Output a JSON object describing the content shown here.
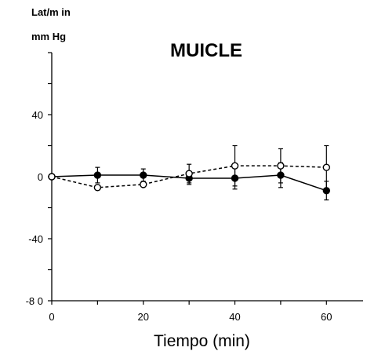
{
  "chart_data": {
    "type": "line",
    "title": "MUICLE",
    "ylabel_lines": [
      "Lat/m in",
      "mm  Hg"
    ],
    "xlabel": "Tiempo (min)",
    "xlim": [
      0,
      68
    ],
    "ylim": [
      -80,
      80
    ],
    "xticks": [
      {
        "value": 0,
        "label": "0"
      },
      {
        "value": 20,
        "label": "20"
      },
      {
        "value": 40,
        "label": "40"
      },
      {
        "value": 60,
        "label": "60"
      }
    ],
    "yticks": [
      {
        "value": 40,
        "label": "40"
      },
      {
        "value": 0,
        "label": "0"
      },
      {
        "value": -40,
        "label": "-40"
      },
      {
        "value": -80,
        "label": "-8 0"
      }
    ],
    "grid": false,
    "legend": "none",
    "series": [
      {
        "style": "solid",
        "marker": "filled-circle",
        "color": "#000000",
        "x": [
          0,
          10,
          20,
          30,
          40,
          50,
          60
        ],
        "y": [
          0,
          1,
          1,
          -1,
          -1,
          1,
          -9
        ],
        "err": [
          0,
          5,
          4,
          4,
          7,
          8,
          6
        ]
      },
      {
        "style": "dashed",
        "marker": "open-circle",
        "color": "#000000",
        "x": [
          0,
          10,
          20,
          30,
          40,
          50,
          60
        ],
        "y": [
          0,
          -7,
          -5,
          2,
          7,
          7,
          6
        ],
        "err": [
          0,
          0,
          0,
          6,
          13,
          11,
          14
        ]
      }
    ]
  }
}
